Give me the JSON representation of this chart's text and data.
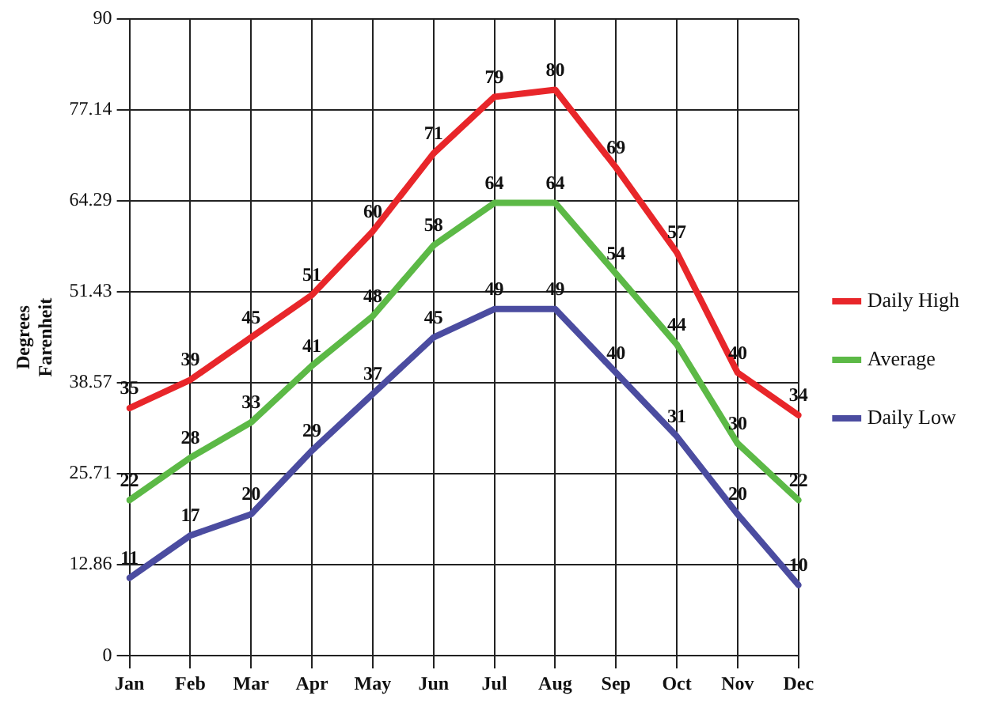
{
  "chart_data": {
    "type": "line",
    "ylabel": "Degrees Farenheit",
    "categories": [
      "Jan",
      "Feb",
      "Mar",
      "Apr",
      "May",
      "Jun",
      "Jul",
      "Aug",
      "Sep",
      "Oct",
      "Nov",
      "Dec"
    ],
    "series": [
      {
        "name": "Daily High",
        "color": "#e8262a",
        "values": [
          35,
          39,
          45,
          51,
          60,
          71,
          79,
          80,
          69,
          57,
          40,
          34
        ]
      },
      {
        "name": "Average",
        "color": "#5cb946",
        "values": [
          22,
          28,
          33,
          41,
          48,
          58,
          64,
          64,
          54,
          44,
          30,
          22
        ]
      },
      {
        "name": "Daily Low",
        "color": "#4b4ca0",
        "values": [
          11,
          17,
          20,
          29,
          37,
          45,
          49,
          49,
          40,
          31,
          20,
          10
        ]
      }
    ],
    "ylim": [
      0,
      90
    ],
    "yticks": [
      0,
      12.86,
      25.71,
      38.57,
      51.43,
      64.29,
      77.14,
      90
    ],
    "grid": true,
    "legend": "right",
    "marker": "none",
    "line_style": "solid",
    "data_labels": true
  }
}
